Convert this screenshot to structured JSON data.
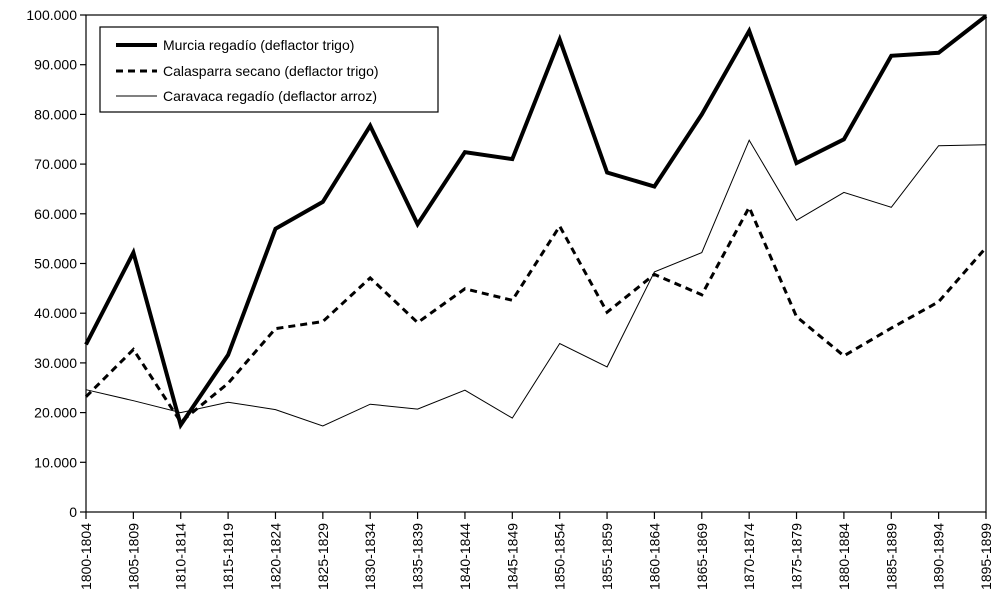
{
  "chart_data": {
    "type": "line",
    "title": "",
    "xlabel": "",
    "ylabel": "",
    "ylim": [
      0,
      100
    ],
    "y_ticks": [
      0,
      10,
      20,
      30,
      40,
      50,
      60,
      70,
      80,
      90,
      100
    ],
    "y_tick_labels": [
      "0",
      "10.000",
      "20.000",
      "30.000",
      "40.000",
      "50.000",
      "60.000",
      "70.000",
      "80.000",
      "90.000",
      "100.000"
    ],
    "categories": [
      "1800-1804",
      "1805-1809",
      "1810-1814",
      "1815-1819",
      "1820-1824",
      "1825-1829",
      "1830-1834",
      "1835-1839",
      "1840-1844",
      "1845-1849",
      "1850-1854",
      "1855-1859",
      "1860-1864",
      "1865-1869",
      "1870-1874",
      "1875-1879",
      "1880-1884",
      "1885-1889",
      "1890-1894",
      "1895-1899"
    ],
    "grid": false,
    "legend_position": "top-left",
    "series": [
      {
        "name": "Murcia regadío (deflactor trigo)",
        "style": "thick-solid",
        "color": "#000000",
        "values": [
          33.7,
          52.2,
          17.5,
          31.6,
          57.0,
          62.4,
          77.7,
          57.9,
          72.4,
          71.0,
          95.1,
          68.3,
          65.5,
          80.0,
          96.8,
          70.2,
          75.0,
          91.8,
          92.4,
          99.8
        ]
      },
      {
        "name": "Calasparra secano (deflactor trigo)",
        "style": "dashed",
        "color": "#000000",
        "values": [
          23.2,
          32.7,
          18.1,
          25.9,
          36.9,
          38.3,
          47.1,
          38.1,
          44.9,
          42.6,
          57.5,
          40.2,
          47.8,
          43.7,
          61.3,
          39.3,
          31.4,
          37.0,
          42.3,
          53.2
        ]
      },
      {
        "name": "Caravaca regadío (deflactor arroz)",
        "style": "thin-solid",
        "color": "#000000",
        "values": [
          24.6,
          22.4,
          20.0,
          22.1,
          20.6,
          17.3,
          21.7,
          20.7,
          24.5,
          18.9,
          33.9,
          29.2,
          48.3,
          52.2,
          74.8,
          58.7,
          64.3,
          61.3,
          73.7,
          73.9
        ]
      }
    ]
  }
}
